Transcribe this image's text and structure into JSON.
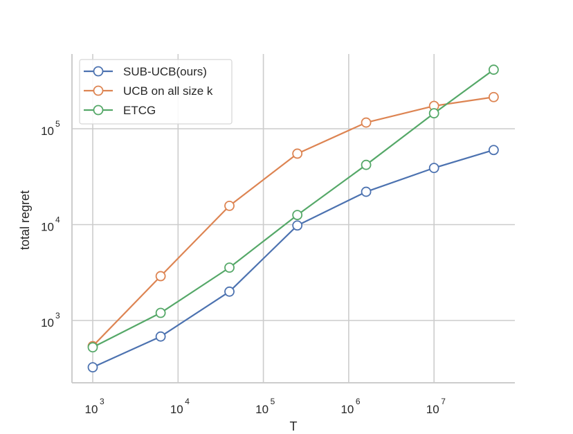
{
  "chart_data": {
    "type": "line",
    "title": "",
    "xlabel": "T",
    "ylabel": "total regret",
    "xscale": "log",
    "yscale": "log",
    "xlim": [
      630,
      80000000
    ],
    "ylim": [
      200,
      600000
    ],
    "grid": true,
    "legend_position": "upper left",
    "x": [
      1000,
      6250,
      40000,
      250000,
      1600000,
      10000000,
      50000000
    ],
    "x_ticks": [
      {
        "base": "10",
        "exp": "3"
      },
      {
        "base": "10",
        "exp": "4"
      },
      {
        "base": "10",
        "exp": "5"
      },
      {
        "base": "10",
        "exp": "6"
      },
      {
        "base": "10",
        "exp": "7"
      }
    ],
    "y_ticks": [
      {
        "base": "10",
        "exp": "3"
      },
      {
        "base": "10",
        "exp": "4"
      },
      {
        "base": "10",
        "exp": "5"
      }
    ],
    "series": [
      {
        "name": "SUB-UCB(ours)",
        "color": "#4c72b0",
        "values": [
          325,
          680,
          2000,
          9800,
          22000,
          39000,
          60000
        ]
      },
      {
        "name": "UCB on all size k",
        "color": "#dd8452",
        "values": [
          540,
          2900,
          15700,
          55000,
          116000,
          173000,
          214000
        ]
      },
      {
        "name": "ETCG",
        "color": "#55a868",
        "values": [
          525,
          1200,
          3560,
          12600,
          42000,
          145000,
          413000
        ]
      }
    ]
  }
}
